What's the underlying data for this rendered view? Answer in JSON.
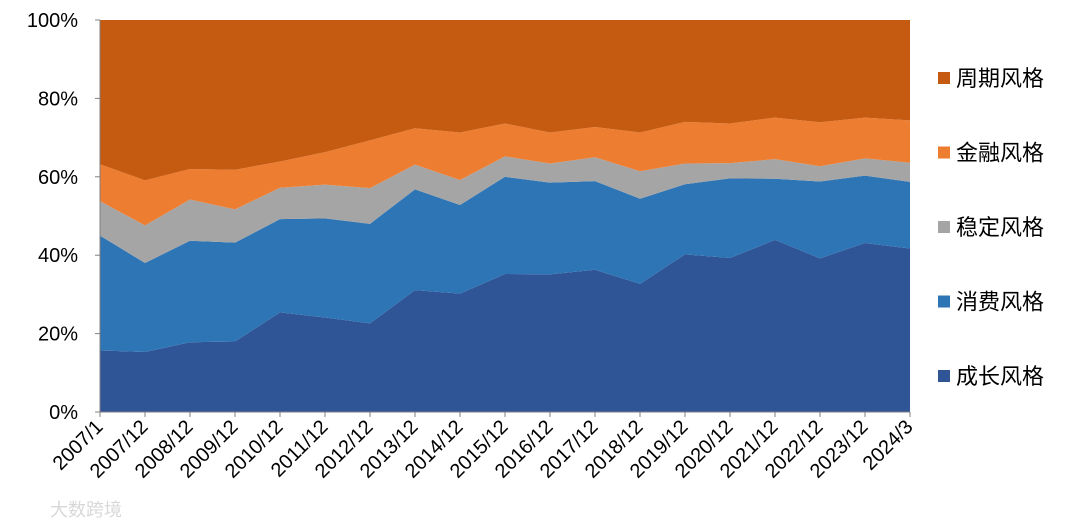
{
  "chart_data": {
    "type": "area",
    "stacked": true,
    "categories": [
      "2007/1",
      "2007/12",
      "2008/12",
      "2009/12",
      "2010/12",
      "2011/12",
      "2012/12",
      "2013/12",
      "2014/12",
      "2015/12",
      "2016/12",
      "2017/12",
      "2018/12",
      "2019/12",
      "2020/12",
      "2021/12",
      "2022/12",
      "2023/12",
      "2024/3"
    ],
    "ylim": [
      0,
      100
    ],
    "y_ticks": [
      "0%",
      "20%",
      "40%",
      "60%",
      "80%",
      "100%"
    ],
    "y_tick_values": [
      0,
      20,
      40,
      60,
      80,
      100
    ],
    "grid": false,
    "legend_position": "right",
    "series": [
      {
        "name": "成长风格",
        "color": "#2f5597",
        "values": [
          15.7,
          15.3,
          17.8,
          18.0,
          25.4,
          24.1,
          22.6,
          31.1,
          30.2,
          35.2,
          35.1,
          36.3,
          32.7,
          40.2,
          39.3,
          43.9,
          39.2,
          43.1,
          41.7
        ]
      },
      {
        "name": "消费风格",
        "color": "#2e75b6",
        "values": [
          29.3,
          22.7,
          25.9,
          25.2,
          23.8,
          25.3,
          25.4,
          25.7,
          22.6,
          24.8,
          23.4,
          22.6,
          21.7,
          17.9,
          20.3,
          15.6,
          19.6,
          17.2,
          17.0
        ]
      },
      {
        "name": "稳定风格",
        "color": "#a5a5a5",
        "values": [
          8.8,
          9.6,
          10.5,
          8.5,
          8.0,
          8.6,
          9.1,
          6.3,
          6.4,
          5.2,
          4.9,
          6.1,
          7.0,
          5.3,
          3.9,
          5.0,
          3.9,
          4.4,
          4.9
        ]
      },
      {
        "name": "金融风格",
        "color": "#ed7d31",
        "values": [
          9.4,
          11.5,
          7.8,
          10.1,
          6.7,
          8.3,
          12.2,
          9.3,
          12.1,
          8.4,
          7.9,
          7.7,
          9.9,
          10.6,
          10.1,
          10.6,
          11.2,
          10.4,
          10.8
        ]
      },
      {
        "name": "周期风格",
        "color": "#c55a11",
        "values": [
          36.8,
          40.9,
          38.0,
          38.2,
          36.1,
          33.7,
          30.7,
          27.6,
          28.7,
          26.4,
          28.7,
          27.3,
          28.7,
          26.0,
          26.4,
          24.9,
          26.1,
          24.9,
          25.6
        ]
      }
    ],
    "legend_order": [
      "周期风格",
      "金融风格",
      "稳定风格",
      "消费风格",
      "成长风格"
    ]
  },
  "watermark": {
    "text": "大数跨境"
  }
}
